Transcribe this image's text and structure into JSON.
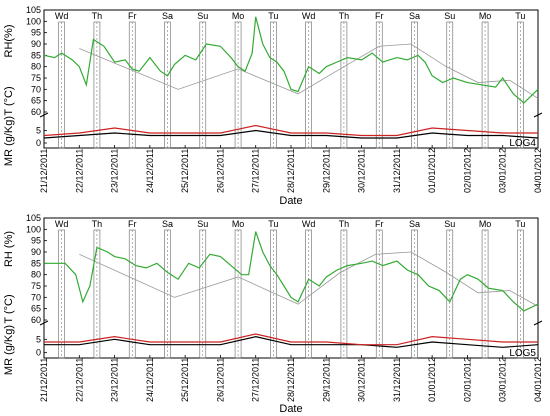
{
  "chart_data": [
    {
      "type": "line",
      "panel": "LOG4",
      "xlabel": "Date",
      "ylabels": {
        "rh": "RH(%)",
        "t": "T (°C)",
        "mr": "MR (g/Kg)"
      },
      "rh_ylim": [
        60,
        105
      ],
      "rh_ticks": [
        60,
        65,
        70,
        75,
        80,
        85,
        90,
        95,
        100,
        105
      ],
      "mr_ylim": [
        -2,
        10
      ],
      "mr_ticks": [
        0,
        5
      ],
      "day_labels": [
        "Wd",
        "Th",
        "Fr",
        "Sa",
        "Su",
        "Mo",
        "Tu",
        "Wd",
        "Th",
        "Fr",
        "Sa",
        "Su",
        "Mo",
        "Tu"
      ],
      "dates": [
        "21/12/2011",
        "22/12/2011",
        "23/12/2011",
        "24/12/2011",
        "25/12/2011",
        "26/12/2011",
        "27/12/2011",
        "28/12/2011",
        "29/12/2011",
        "30/12/2011",
        "31/12/2011",
        "01/01/2012",
        "02/01/2012",
        "03/01/2012",
        "04/01/2012"
      ],
      "rh_series": {
        "color": "#33aa33",
        "x": [
          0,
          0.3,
          0.5,
          0.8,
          1.0,
          1.2,
          1.4,
          1.7,
          2.0,
          2.3,
          2.5,
          2.7,
          3.0,
          3.3,
          3.5,
          3.7,
          4.0,
          4.3,
          4.6,
          5.0,
          5.3,
          5.5,
          5.7,
          5.9,
          6.0,
          6.2,
          6.4,
          6.6,
          6.8,
          7.0,
          7.2,
          7.5,
          7.8,
          8.0,
          8.3,
          8.6,
          9.0,
          9.3,
          9.6,
          10.0,
          10.3,
          10.6,
          10.8,
          11.0,
          11.3,
          11.6,
          12.0,
          12.4,
          12.8,
          13.0,
          13.3,
          13.6,
          14.0
        ],
        "y": [
          85,
          84,
          86,
          83,
          80,
          72,
          92,
          89,
          82,
          83,
          79,
          78,
          84,
          78,
          76,
          81,
          85,
          83,
          90,
          89,
          84,
          80,
          78,
          86,
          102,
          90,
          84,
          82,
          78,
          70,
          69,
          80,
          77,
          80,
          82,
          84,
          83,
          86,
          82,
          84,
          83,
          85,
          82,
          76,
          73,
          75,
          73,
          72,
          71,
          75,
          68,
          64,
          70
        ]
      },
      "dotted_trend": {
        "color": "#999999",
        "x": [
          1.0,
          3.8,
          5.5,
          7.2,
          8.5,
          9.5,
          10.4,
          11.4,
          12.3,
          13.2,
          14.0
        ],
        "y": [
          88,
          70,
          79,
          68,
          80,
          89,
          90,
          80,
          73,
          74,
          66
        ]
      },
      "mr_series": [
        {
          "name": "",
          "color": "#000000",
          "x": [
            0,
            1,
            2,
            3,
            4,
            5,
            6,
            7,
            8,
            9,
            10,
            11,
            12,
            13,
            14
          ],
          "y": [
            2,
            3,
            4,
            3,
            3,
            3,
            5,
            3,
            3,
            2,
            2,
            4,
            3,
            3,
            2
          ]
        },
        {
          "name": "",
          "color": "#cc2222",
          "x": [
            0,
            1,
            2,
            3,
            4,
            5,
            6,
            7,
            8,
            9,
            10,
            11,
            12,
            13,
            14
          ],
          "y": [
            3,
            4,
            6,
            4,
            4,
            4,
            7,
            4,
            4,
            3,
            3,
            6,
            5,
            4,
            4
          ]
        }
      ],
      "log_label": "LOG4"
    },
    {
      "type": "line",
      "panel": "LOG5",
      "xlabel": "Date",
      "ylabels": {
        "rh": "RH (%)",
        "t": "T (°C)",
        "mr": "MR (g/Kg)"
      },
      "rh_ylim": [
        60,
        105
      ],
      "rh_ticks": [
        60,
        65,
        70,
        75,
        80,
        85,
        90,
        95,
        100,
        105
      ],
      "mr_ylim": [
        -2,
        10
      ],
      "mr_ticks": [
        0,
        5
      ],
      "day_labels": [
        "Wd",
        "Th",
        "Fr",
        "Sa",
        "Su",
        "Mo",
        "Tu",
        "Wd",
        "Th",
        "Fr",
        "Sa",
        "Su",
        "Mo",
        "Tu"
      ],
      "dates": [
        "21/12/2011",
        "22/12/2011",
        "23/12/2011",
        "24/12/2011",
        "25/12/2011",
        "26/12/2011",
        "27/12/2011",
        "28/12/2011",
        "29/12/2011",
        "30/12/2011",
        "31/12/2011",
        "01/01/2012",
        "02/01/2012",
        "03/01/2012",
        "04/01/2012"
      ],
      "rh_series": {
        "color": "#33aa33",
        "x": [
          0,
          0.3,
          0.6,
          0.9,
          1.1,
          1.3,
          1.5,
          1.8,
          2.0,
          2.3,
          2.6,
          2.9,
          3.2,
          3.5,
          3.8,
          4.1,
          4.4,
          4.7,
          5.0,
          5.3,
          5.6,
          5.8,
          6.0,
          6.2,
          6.4,
          6.6,
          6.8,
          7.0,
          7.2,
          7.5,
          7.8,
          8.0,
          8.3,
          8.6,
          9.0,
          9.3,
          9.6,
          10.0,
          10.3,
          10.6,
          10.9,
          11.2,
          11.5,
          11.8,
          12.0,
          12.3,
          12.6,
          13.0,
          13.3,
          13.6,
          14.0
        ],
        "y": [
          85,
          85,
          85,
          80,
          68,
          75,
          92,
          90,
          88,
          87,
          84,
          83,
          85,
          81,
          78,
          85,
          83,
          89,
          88,
          84,
          80,
          80,
          99,
          90,
          84,
          80,
          75,
          70,
          68,
          78,
          75,
          79,
          82,
          84,
          85,
          86,
          84,
          86,
          82,
          80,
          75,
          73,
          68,
          78,
          80,
          78,
          74,
          73,
          68,
          64,
          67
        ]
      },
      "dotted_trend": {
        "color": "#999999",
        "x": [
          1.0,
          3.7,
          5.5,
          7.2,
          8.4,
          9.4,
          10.4,
          11.4,
          12.3,
          13.2,
          14.0
        ],
        "y": [
          89,
          70,
          79,
          67,
          81,
          89,
          90,
          81,
          72,
          73,
          66
        ]
      },
      "mr_series": [
        {
          "name": "",
          "color": "#000000",
          "x": [
            0,
            1,
            2,
            3,
            4,
            5,
            6,
            7,
            8,
            9,
            10,
            11,
            12,
            13,
            14
          ],
          "y": [
            3,
            3,
            5,
            3,
            3,
            3,
            6,
            3,
            3,
            3,
            2,
            4,
            3,
            2,
            3
          ]
        },
        {
          "name": "",
          "color": "#cc2222",
          "x": [
            0,
            1,
            2,
            3,
            4,
            5,
            6,
            7,
            8,
            9,
            10,
            11,
            12,
            13,
            14
          ],
          "y": [
            4,
            4,
            6,
            4,
            4,
            4,
            7,
            4,
            4,
            3,
            3,
            6,
            5,
            4,
            4
          ]
        }
      ],
      "log_label": "LOG5"
    }
  ]
}
